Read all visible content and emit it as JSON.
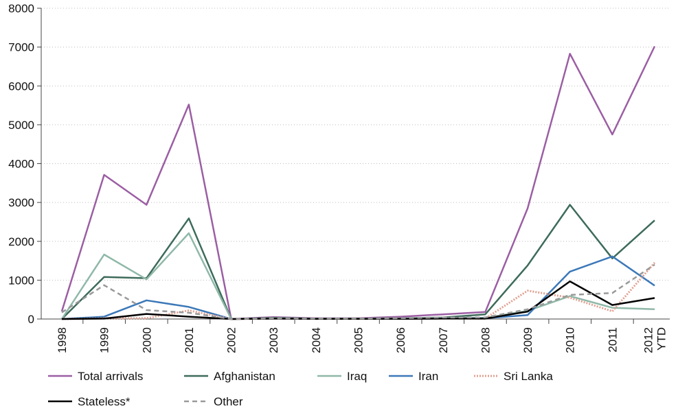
{
  "chart_data": {
    "type": "line",
    "title": "",
    "xlabel": "",
    "ylabel": "",
    "categories": [
      "1998",
      "1999",
      "2000",
      "2001",
      "2002",
      "2003",
      "2004",
      "2005",
      "2006",
      "2007",
      "2008",
      "2009",
      "2010",
      "2011",
      "2012 YTD"
    ],
    "ylim": [
      0,
      8000
    ],
    "yticks": [
      "0",
      "1000",
      "2000",
      "3000",
      "4000",
      "5000",
      "6000",
      "7000",
      "8000"
    ],
    "grid": "horizontal dotted",
    "legend_position": "bottom",
    "series": [
      {
        "name": "Total arrivals",
        "color": "#9b5ea3",
        "dash": "solid",
        "values": [
          200,
          3710,
          2940,
          5520,
          0,
          50,
          20,
          20,
          60,
          120,
          180,
          2850,
          6830,
          4750,
          7020
        ]
      },
      {
        "name": "Afghanistan",
        "color": "#3d6b5a",
        "dash": "solid",
        "values": [
          0,
          1080,
          1050,
          2590,
          0,
          30,
          10,
          10,
          20,
          40,
          120,
          1380,
          2940,
          1560,
          2540
        ]
      },
      {
        "name": "Iraq",
        "color": "#8fb8a8",
        "dash": "solid",
        "values": [
          0,
          1660,
          1020,
          2210,
          0,
          20,
          10,
          10,
          20,
          30,
          30,
          210,
          590,
          290,
          250
        ]
      },
      {
        "name": "Iran",
        "color": "#3b78b8",
        "dash": "solid",
        "values": [
          0,
          60,
          480,
          310,
          0,
          10,
          5,
          5,
          10,
          20,
          20,
          100,
          1220,
          1610,
          860
        ]
      },
      {
        "name": "Sri Lanka",
        "color": "#e0a191",
        "dash": "dotted",
        "values": [
          0,
          20,
          20,
          220,
          0,
          10,
          5,
          5,
          10,
          20,
          10,
          730,
          550,
          200,
          1450
        ]
      },
      {
        "name": "Stateless*",
        "color": "#000000",
        "dash": "solid",
        "values": [
          0,
          10,
          130,
          60,
          0,
          10,
          5,
          5,
          5,
          10,
          10,
          190,
          970,
          360,
          540
        ]
      },
      {
        "name": "Other",
        "color": "#999999",
        "dash": "dashed",
        "values": [
          170,
          870,
          230,
          160,
          0,
          20,
          10,
          10,
          20,
          40,
          40,
          250,
          620,
          670,
          1400
        ]
      }
    ]
  }
}
